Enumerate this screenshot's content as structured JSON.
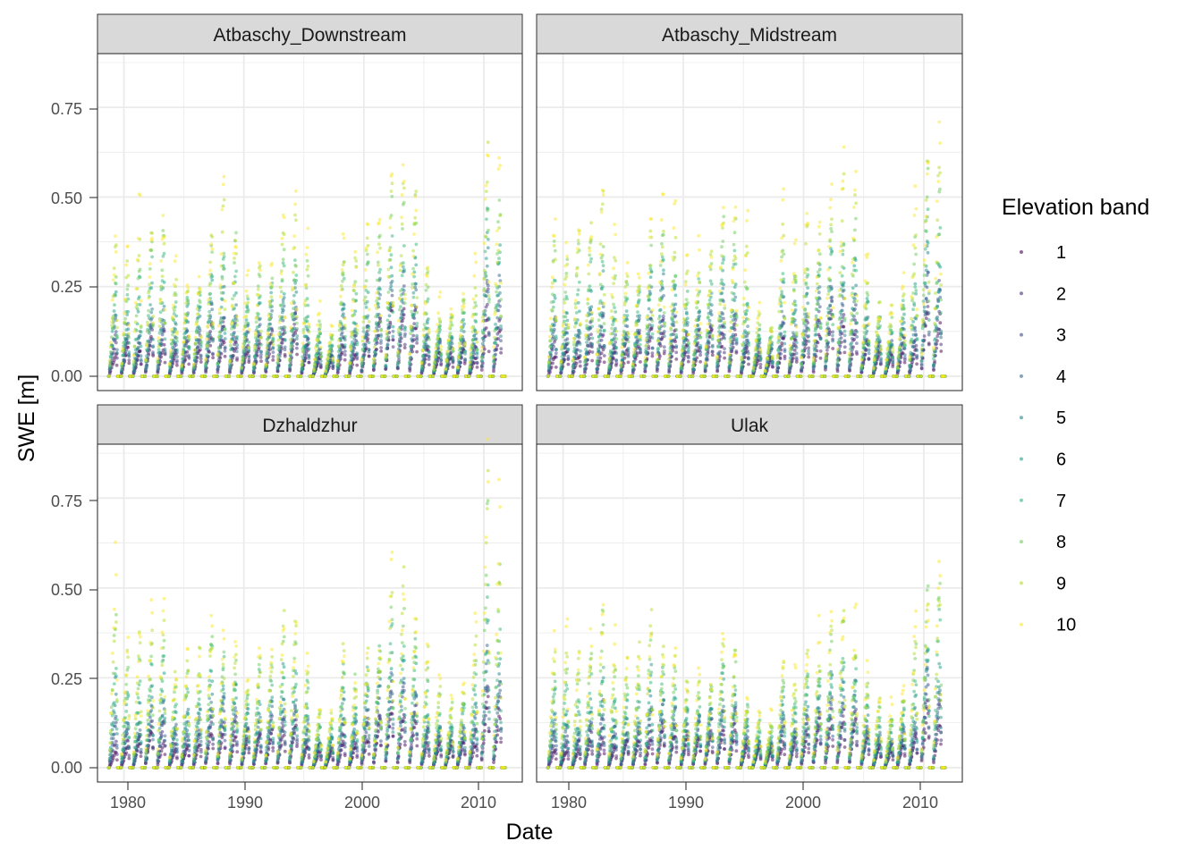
{
  "chart_data": {
    "type": "scatter",
    "x_label": "Date",
    "y_label": "SWE [m]",
    "x_ticks": [
      1980,
      1990,
      2000,
      2010
    ],
    "x_range": [
      1977.8,
      2013.2
    ],
    "y_ticks": [
      0,
      0.25,
      0.5,
      0.75
    ],
    "y_tick_labels": [
      "0.00",
      "0.25",
      "0.50",
      "0.75"
    ],
    "y_range": [
      -0.04,
      0.9
    ],
    "grid": true,
    "legend": {
      "title": "Elevation band",
      "placement": "right",
      "entries": [
        {
          "label": "1",
          "color": "#440154"
        },
        {
          "label": "2",
          "color": "#482878"
        },
        {
          "label": "3",
          "color": "#3E4A89"
        },
        {
          "label": "4",
          "color": "#31688E"
        },
        {
          "label": "5",
          "color": "#26828E"
        },
        {
          "label": "6",
          "color": "#1F9E89"
        },
        {
          "label": "7",
          "color": "#35B779"
        },
        {
          "label": "8",
          "color": "#6DCD59"
        },
        {
          "label": "9",
          "color": "#B4DE2C"
        },
        {
          "label": "10",
          "color": "#FDE725"
        }
      ]
    },
    "facets": [
      {
        "title": "Atbaschy_Downstream",
        "annual_peak_by_band": {
          "years": [
            1979,
            1980,
            1981,
            1982,
            1983,
            1984,
            1985,
            1986,
            1987,
            1988,
            1989,
            1990,
            1991,
            1992,
            1993,
            1994,
            1995,
            1996,
            1997,
            1998,
            1999,
            2000,
            2001,
            2002,
            2003,
            2004,
            2005,
            2006,
            2007,
            2008,
            2009,
            2010,
            2011
          ],
          "band1": [
            0.06,
            0.08,
            0.07,
            0.12,
            0.1,
            0.06,
            0.08,
            0.09,
            0.11,
            0.13,
            0.1,
            0.09,
            0.1,
            0.11,
            0.12,
            0.14,
            0.08,
            0.05,
            0.05,
            0.09,
            0.07,
            0.11,
            0.14,
            0.19,
            0.18,
            0.17,
            0.09,
            0.07,
            0.06,
            0.07,
            0.06,
            0.18,
            0.16
          ],
          "band5": [
            0.2,
            0.15,
            0.14,
            0.21,
            0.22,
            0.14,
            0.16,
            0.18,
            0.24,
            0.25,
            0.22,
            0.16,
            0.18,
            0.2,
            0.22,
            0.24,
            0.14,
            0.1,
            0.09,
            0.21,
            0.16,
            0.2,
            0.25,
            0.3,
            0.28,
            0.27,
            0.16,
            0.12,
            0.12,
            0.14,
            0.14,
            0.35,
            0.29
          ],
          "band10": [
            0.4,
            0.37,
            0.49,
            0.48,
            0.54,
            0.37,
            0.3,
            0.33,
            0.43,
            0.52,
            0.48,
            0.3,
            0.37,
            0.33,
            0.53,
            0.51,
            0.43,
            0.19,
            0.15,
            0.51,
            0.38,
            0.45,
            0.48,
            0.58,
            0.6,
            0.59,
            0.35,
            0.22,
            0.2,
            0.25,
            0.31,
            0.67,
            0.63
          ]
        }
      },
      {
        "title": "Atbaschy_Midstream",
        "annual_peak_by_band": {
          "years": [
            1979,
            1980,
            1981,
            1982,
            1983,
            1984,
            1985,
            1986,
            1987,
            1988,
            1989,
            1990,
            1991,
            1992,
            1993,
            1994,
            1995,
            1996,
            1997,
            1998,
            1999,
            2000,
            2001,
            2002,
            2003,
            2004,
            2005,
            2006,
            2007,
            2008,
            2009,
            2010,
            2011
          ],
          "band1": [
            0.06,
            0.08,
            0.07,
            0.11,
            0.1,
            0.07,
            0.09,
            0.1,
            0.12,
            0.14,
            0.11,
            0.1,
            0.1,
            0.12,
            0.13,
            0.15,
            0.08,
            0.06,
            0.05,
            0.1,
            0.08,
            0.12,
            0.14,
            0.18,
            0.17,
            0.16,
            0.09,
            0.07,
            0.06,
            0.08,
            0.08,
            0.2,
            0.17
          ],
          "band5": [
            0.22,
            0.17,
            0.16,
            0.22,
            0.24,
            0.15,
            0.17,
            0.19,
            0.26,
            0.28,
            0.24,
            0.18,
            0.19,
            0.22,
            0.25,
            0.26,
            0.16,
            0.11,
            0.1,
            0.22,
            0.17,
            0.22,
            0.26,
            0.31,
            0.29,
            0.28,
            0.17,
            0.13,
            0.12,
            0.16,
            0.18,
            0.38,
            0.31
          ],
          "band10": [
            0.43,
            0.4,
            0.52,
            0.5,
            0.56,
            0.4,
            0.33,
            0.36,
            0.48,
            0.53,
            0.49,
            0.34,
            0.38,
            0.37,
            0.55,
            0.52,
            0.44,
            0.2,
            0.16,
            0.54,
            0.4,
            0.47,
            0.5,
            0.6,
            0.61,
            0.6,
            0.36,
            0.23,
            0.21,
            0.27,
            0.52,
            0.7,
            0.7
          ]
        }
      },
      {
        "title": "Dzhaldzhur",
        "annual_peak_by_band": {
          "years": [
            1979,
            1980,
            1981,
            1982,
            1983,
            1984,
            1985,
            1986,
            1987,
            1988,
            1989,
            1990,
            1991,
            1992,
            1993,
            1994,
            1995,
            1996,
            1997,
            1998,
            1999,
            2000,
            2001,
            2002,
            2003,
            2004,
            2005,
            2006,
            2007,
            2008,
            2009,
            2010,
            2011
          ],
          "band1": [
            0.05,
            0.06,
            0.07,
            0.1,
            0.09,
            0.06,
            0.07,
            0.08,
            0.1,
            0.12,
            0.1,
            0.08,
            0.09,
            0.1,
            0.11,
            0.12,
            0.07,
            0.05,
            0.05,
            0.08,
            0.07,
            0.1,
            0.13,
            0.17,
            0.16,
            0.15,
            0.08,
            0.07,
            0.06,
            0.07,
            0.08,
            0.2,
            0.15
          ],
          "band5": [
            0.2,
            0.15,
            0.14,
            0.2,
            0.22,
            0.14,
            0.15,
            0.17,
            0.23,
            0.25,
            0.21,
            0.16,
            0.17,
            0.2,
            0.22,
            0.23,
            0.14,
            0.09,
            0.09,
            0.19,
            0.15,
            0.2,
            0.24,
            0.29,
            0.27,
            0.26,
            0.15,
            0.12,
            0.11,
            0.15,
            0.17,
            0.37,
            0.29
          ],
          "band10": [
            0.59,
            0.42,
            0.42,
            0.5,
            0.55,
            0.3,
            0.4,
            0.37,
            0.5,
            0.37,
            0.41,
            0.3,
            0.37,
            0.36,
            0.46,
            0.45,
            0.35,
            0.2,
            0.16,
            0.37,
            0.3,
            0.37,
            0.42,
            0.59,
            0.59,
            0.45,
            0.37,
            0.24,
            0.22,
            0.26,
            0.5,
            0.87,
            0.74
          ]
        }
      },
      {
        "title": "Ulak",
        "annual_peak_by_band": {
          "years": [
            1979,
            1980,
            1981,
            1982,
            1983,
            1984,
            1985,
            1986,
            1987,
            1988,
            1989,
            1990,
            1991,
            1992,
            1993,
            1994,
            1995,
            1996,
            1997,
            1998,
            1999,
            2000,
            2001,
            2002,
            2003,
            2004,
            2005,
            2006,
            2007,
            2008,
            2009,
            2010,
            2011
          ],
          "band1": [
            0.05,
            0.06,
            0.06,
            0.09,
            0.08,
            0.06,
            0.07,
            0.08,
            0.09,
            0.11,
            0.09,
            0.08,
            0.09,
            0.1,
            0.11,
            0.12,
            0.07,
            0.05,
            0.05,
            0.08,
            0.07,
            0.1,
            0.12,
            0.15,
            0.14,
            0.13,
            0.08,
            0.06,
            0.06,
            0.07,
            0.08,
            0.18,
            0.14
          ],
          "band5": [
            0.18,
            0.14,
            0.13,
            0.18,
            0.2,
            0.13,
            0.14,
            0.16,
            0.21,
            0.22,
            0.19,
            0.15,
            0.16,
            0.18,
            0.2,
            0.21,
            0.13,
            0.09,
            0.08,
            0.18,
            0.14,
            0.18,
            0.21,
            0.26,
            0.25,
            0.24,
            0.14,
            0.11,
            0.1,
            0.14,
            0.16,
            0.33,
            0.27
          ],
          "band10": [
            0.4,
            0.37,
            0.37,
            0.42,
            0.53,
            0.37,
            0.37,
            0.37,
            0.49,
            0.38,
            0.41,
            0.27,
            0.27,
            0.27,
            0.43,
            0.39,
            0.23,
            0.17,
            0.15,
            0.38,
            0.3,
            0.37,
            0.39,
            0.45,
            0.51,
            0.46,
            0.3,
            0.21,
            0.2,
            0.24,
            0.51,
            0.57,
            0.66
          ]
        }
      }
    ]
  }
}
